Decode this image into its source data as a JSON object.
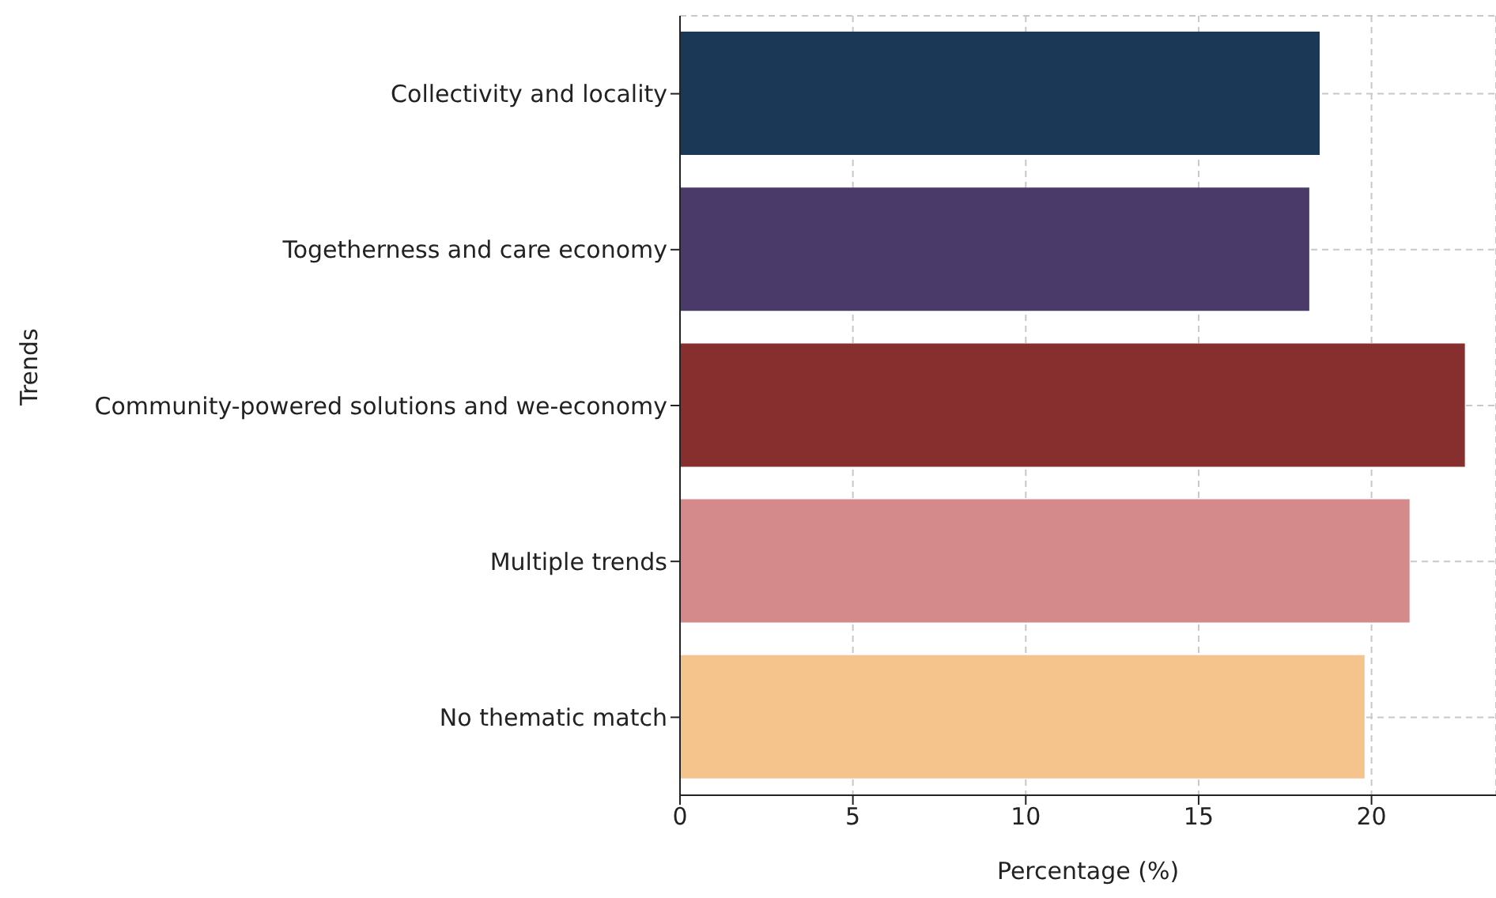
{
  "chart_data": {
    "type": "bar",
    "orientation": "horizontal",
    "xlabel": "Percentage (%)",
    "ylabel": "Trends",
    "categories": [
      "Collectivity and locality",
      "Togetherness and care economy",
      "Community-powered solutions and we-economy",
      "Multiple trends",
      "No thematic match"
    ],
    "values": [
      18.5,
      18.2,
      22.7,
      21.1,
      19.8
    ],
    "colors": [
      "#1c3857",
      "#4a3a69",
      "#872f2f",
      "#d4898a",
      "#f5c48c"
    ],
    "xlim": [
      0,
      23.6
    ],
    "xticks": [
      0,
      5,
      10,
      15,
      20
    ],
    "grid": true
  }
}
